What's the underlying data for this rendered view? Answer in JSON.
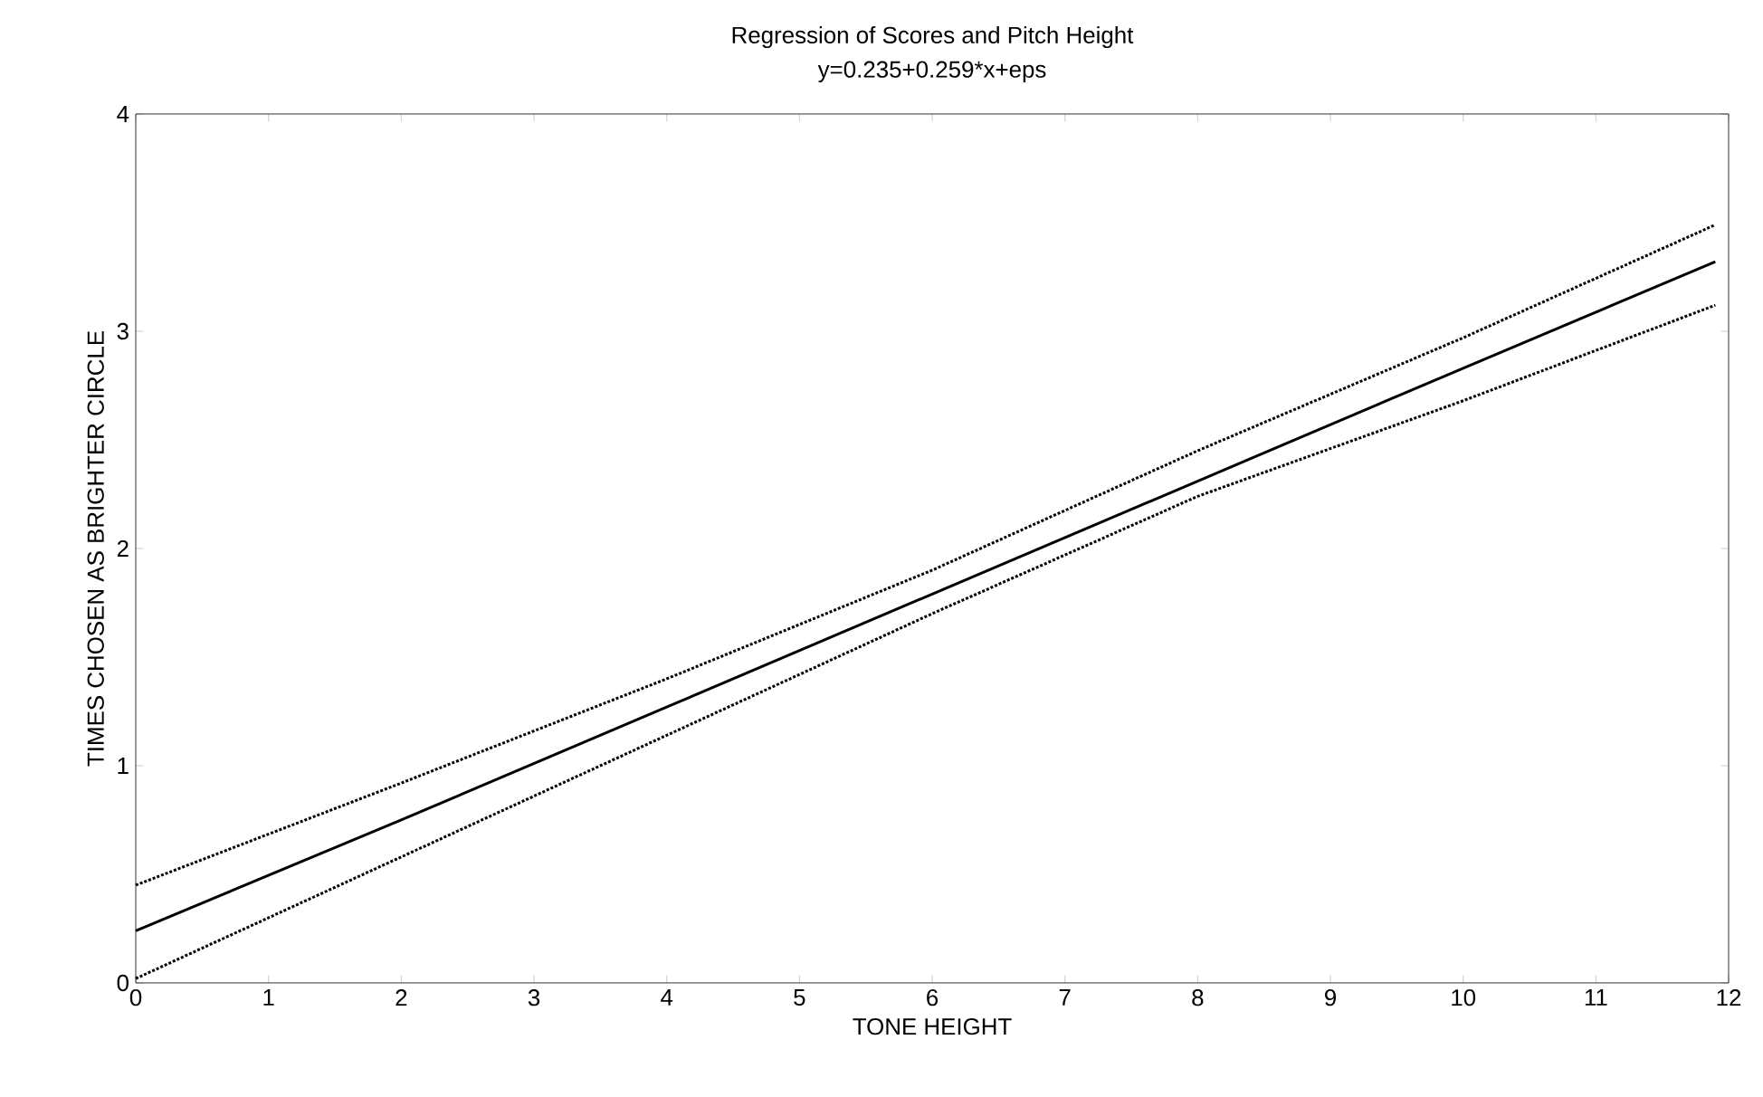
{
  "chart_data": {
    "type": "line",
    "title": "Regression of Scores and Pitch Height",
    "subtitle": "y=0.235+0.259*x+eps",
    "xlabel": "TONE HEIGHT",
    "ylabel": "TIMES CHOSEN AS BRIGHTER CIRCLE",
    "x": [
      0,
      2,
      4,
      6,
      8,
      10,
      11.9
    ],
    "series": [
      {
        "color": "#000000",
        "values": [
          0.24,
          0.75,
          1.27,
          1.79,
          2.31,
          2.83,
          3.32
        ]
      },
      {
        "color": "#000000",
        "line_style": "dotted",
        "values": [
          0.02,
          0.58,
          1.14,
          1.7,
          2.24,
          2.68,
          3.12
        ]
      },
      {
        "color": "#000000",
        "line_style": "dotted",
        "values": [
          0.45,
          0.92,
          1.4,
          1.9,
          2.45,
          2.97,
          3.49
        ]
      }
    ],
    "xlim": [
      0,
      12
    ],
    "ylim": [
      0,
      4
    ],
    "xticks": [
      0,
      1,
      2,
      3,
      4,
      5,
      6,
      7,
      8,
      9,
      10,
      11,
      12
    ],
    "yticks": [
      0,
      1,
      2,
      3,
      4
    ],
    "grid": false,
    "marker": "none",
    "line_style": "solid"
  }
}
